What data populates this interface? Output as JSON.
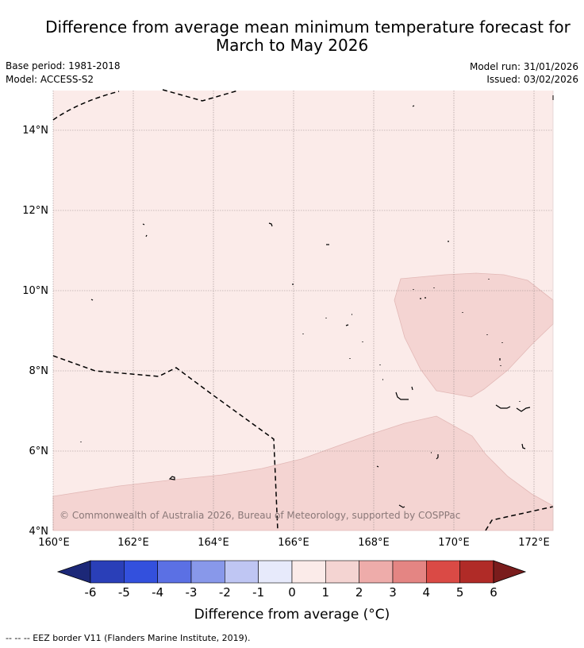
{
  "header": {
    "title_line1": "Difference from average mean minimum temperature forecast for",
    "title_line2": "March to May 2026",
    "base_period": "Base period: 1981-2018",
    "model": "Model: ACCESS-S2",
    "model_run": "Model run: 31/01/2026",
    "issued": "Issued: 03/02/2026"
  },
  "map": {
    "lat_labels": [
      "14°N",
      "12°N",
      "10°N",
      "8°N",
      "6°N",
      "4°N"
    ],
    "lon_labels": [
      "160°E",
      "162°E",
      "164°E",
      "166°E",
      "168°E",
      "170°E",
      "172°E"
    ],
    "copyright": "© Commonwealth of Australia 2026, Bureau of Meteorology, supported by COSPPac",
    "background_color": "#fbebe9",
    "warm_color": "#f4d4d2"
  },
  "colorbar": {
    "tick_labels": [
      "-6",
      "-5",
      "-4",
      "-3",
      "-2",
      "-1",
      "0",
      "1",
      "2",
      "3",
      "4",
      "5",
      "6"
    ],
    "colors": [
      "#1c2878",
      "#2a3fb8",
      "#3350dd",
      "#5b70e4",
      "#8898ea",
      "#bfc6f3",
      "#e7eafb",
      "#fbebe9",
      "#f4d4d2",
      "#eeacaa",
      "#e48583",
      "#da4a45",
      "#b02b27",
      "#7a1c1c"
    ],
    "label": "Difference from average (°C)"
  },
  "footnote": "-- -- -- EEZ border V11 (Flanders Marine Institute, 2019)."
}
